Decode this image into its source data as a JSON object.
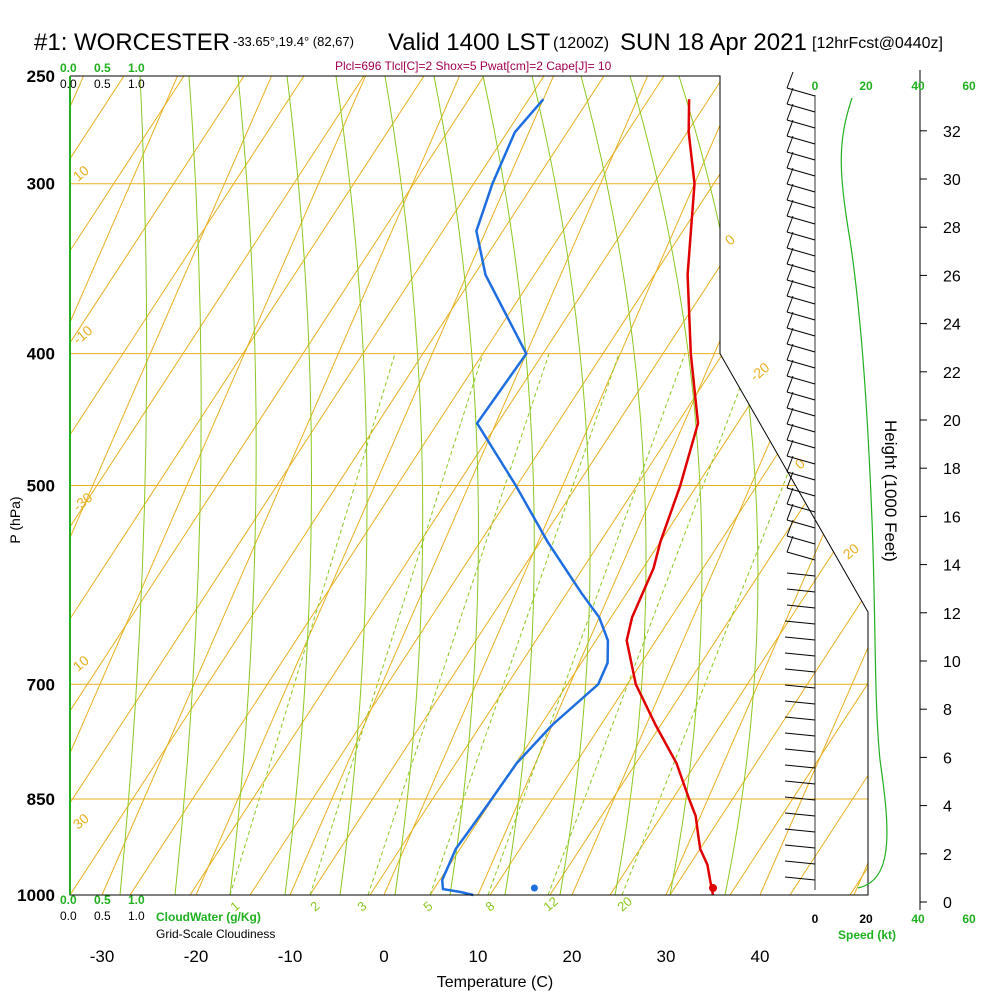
{
  "header": {
    "station": "#1: WORCESTER",
    "coords": "-33.65°,19.4° (82,67)",
    "valid": "Valid 1400 LST",
    "utc": "(1200Z)",
    "date": "SUN 18 Apr 2021",
    "forecast": "[12hrFcst@0440z]",
    "indices": "Plcl=696 Tlcl[C]=2 Shox=5 Pwat[cm]=2 Cape[J]= 10"
  },
  "colors": {
    "isotherm": "#e8b020",
    "dry_adiabat": "#e8b020",
    "moist_adiabat": "#8cc820",
    "mixing_ratio": "#8cc820",
    "temperature": "#e00000",
    "dewpoint": "#1e6ee0",
    "frame": "#000000",
    "cloud": "#20b020"
  },
  "chart_data": {
    "type": "line",
    "title": "#1: WORCESTER Valid 1400 LST SUN 18 Apr 2021",
    "xlabel": "Temperature (C)",
    "ylabel": "P (hPa)",
    "xlim": [
      -35,
      35
    ],
    "ylim": [
      1000,
      250
    ],
    "x_ticks": [
      "-30",
      "-20",
      "-10",
      "0",
      "10",
      "20",
      "30",
      "40"
    ],
    "y_ticks": [
      "250",
      "300",
      "400",
      "500",
      "700",
      "850",
      "1000"
    ],
    "isobars": [
      250,
      300,
      400,
      500,
      700,
      850,
      1000
    ],
    "series": [
      {
        "points": [
          [
            1000,
            35
          ],
          [
            975,
            34
          ],
          [
            950,
            33
          ],
          [
            925,
            31.5
          ],
          [
            900,
            30.5
          ],
          [
            875,
            29.5
          ],
          [
            850,
            28
          ],
          [
            800,
            25
          ],
          [
            750,
            21
          ],
          [
            700,
            17
          ],
          [
            650,
            14
          ],
          [
            625,
            13.5
          ],
          [
            600,
            13.5
          ],
          [
            575,
            13.5
          ],
          [
            550,
            13
          ],
          [
            500,
            12.5
          ],
          [
            450,
            11.5
          ],
          [
            400,
            7.5
          ],
          [
            350,
            3.5
          ],
          [
            300,
            0
          ],
          [
            275,
            -3
          ],
          [
            260,
            -4.5
          ]
        ]
      },
      {
        "points": [
          [
            1000,
            9.5
          ],
          [
            995,
            8
          ],
          [
            990,
            6
          ],
          [
            975,
            5.5
          ],
          [
            950,
            5.5
          ],
          [
            925,
            5.5
          ],
          [
            900,
            6
          ],
          [
            850,
            7
          ],
          [
            800,
            8
          ],
          [
            750,
            10
          ],
          [
            700,
            13
          ],
          [
            675,
            13
          ],
          [
            650,
            12
          ],
          [
            625,
            10
          ],
          [
            600,
            7
          ],
          [
            550,
            1
          ],
          [
            500,
            -5
          ],
          [
            450,
            -12
          ],
          [
            400,
            -10
          ],
          [
            350,
            -18
          ],
          [
            325,
            -21
          ],
          [
            300,
            -21.5
          ],
          [
            275,
            -21.5
          ],
          [
            260,
            -20
          ]
        ]
      }
    ],
    "surface_dewpoint_marker": [
      1000,
      16
    ],
    "isotherm_labels": [
      "10",
      "0",
      "-10",
      "-20",
      "-30",
      "0",
      "10",
      "20",
      "30"
    ],
    "mixing_ratio_labels": [
      "1",
      "2",
      "3",
      "5",
      "8",
      "12",
      "20"
    ],
    "height_axis": {
      "label": "Height (1000 Feet)",
      "ticks": [
        "0",
        "2",
        "4",
        "6",
        "8",
        "10",
        "12",
        "14",
        "16",
        "18",
        "20",
        "22",
        "24",
        "26",
        "28",
        "30",
        "32"
      ]
    },
    "wind_speed_axis": {
      "label": "Speed (kt)",
      "ticks": [
        "0",
        "20",
        "40",
        "60"
      ]
    },
    "cloud_axis": {
      "cloudwater_label": "CloudWater (g/Kg)",
      "cloudiness_label": "Grid-Scale Cloudiness",
      "ticks": [
        "0.0",
        "0.5",
        "1.0"
      ]
    }
  }
}
